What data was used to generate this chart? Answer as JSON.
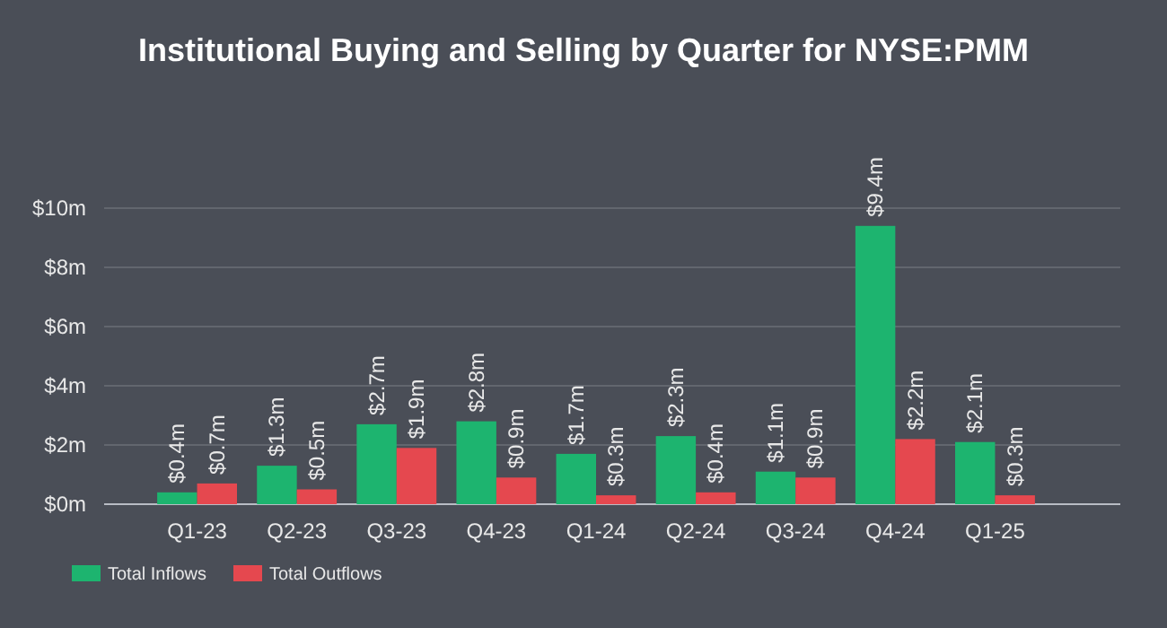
{
  "chart_data": {
    "type": "bar",
    "title": "Institutional Buying and Selling by Quarter for NYSE:PMM",
    "categories": [
      "Q1-23",
      "Q2-23",
      "Q3-23",
      "Q4-23",
      "Q1-24",
      "Q2-24",
      "Q3-24",
      "Q4-24",
      "Q1-25"
    ],
    "series": [
      {
        "name": "Total Inflows",
        "color": "#1db46f",
        "values": [
          0.4,
          1.3,
          2.7,
          2.8,
          1.7,
          2.3,
          1.1,
          9.4,
          2.1
        ],
        "value_labels": [
          "$0.4m",
          "$1.3m",
          "$2.7m",
          "$2.8m",
          "$1.7m",
          "$2.3m",
          "$1.1m",
          "$9.4m",
          "$2.1m"
        ]
      },
      {
        "name": "Total Outflows",
        "color": "#e5484f",
        "values": [
          0.7,
          0.5,
          1.9,
          0.9,
          0.3,
          0.4,
          0.9,
          2.2,
          0.3
        ],
        "value_labels": [
          "$0.7m",
          "$0.5m",
          "$1.9m",
          "$0.9m",
          "$0.3m",
          "$0.4m",
          "$0.9m",
          "$2.2m",
          "$0.3m"
        ]
      }
    ],
    "ylim": [
      0,
      10
    ],
    "yticks": [
      {
        "value": 0,
        "label": "$0m"
      },
      {
        "value": 2,
        "label": "$2m"
      },
      {
        "value": 4,
        "label": "$4m"
      },
      {
        "value": 6,
        "label": "$6m"
      },
      {
        "value": 8,
        "label": "$8m"
      },
      {
        "value": 10,
        "label": "$10m"
      }
    ],
    "grid": "y",
    "legend": "bottom left"
  }
}
